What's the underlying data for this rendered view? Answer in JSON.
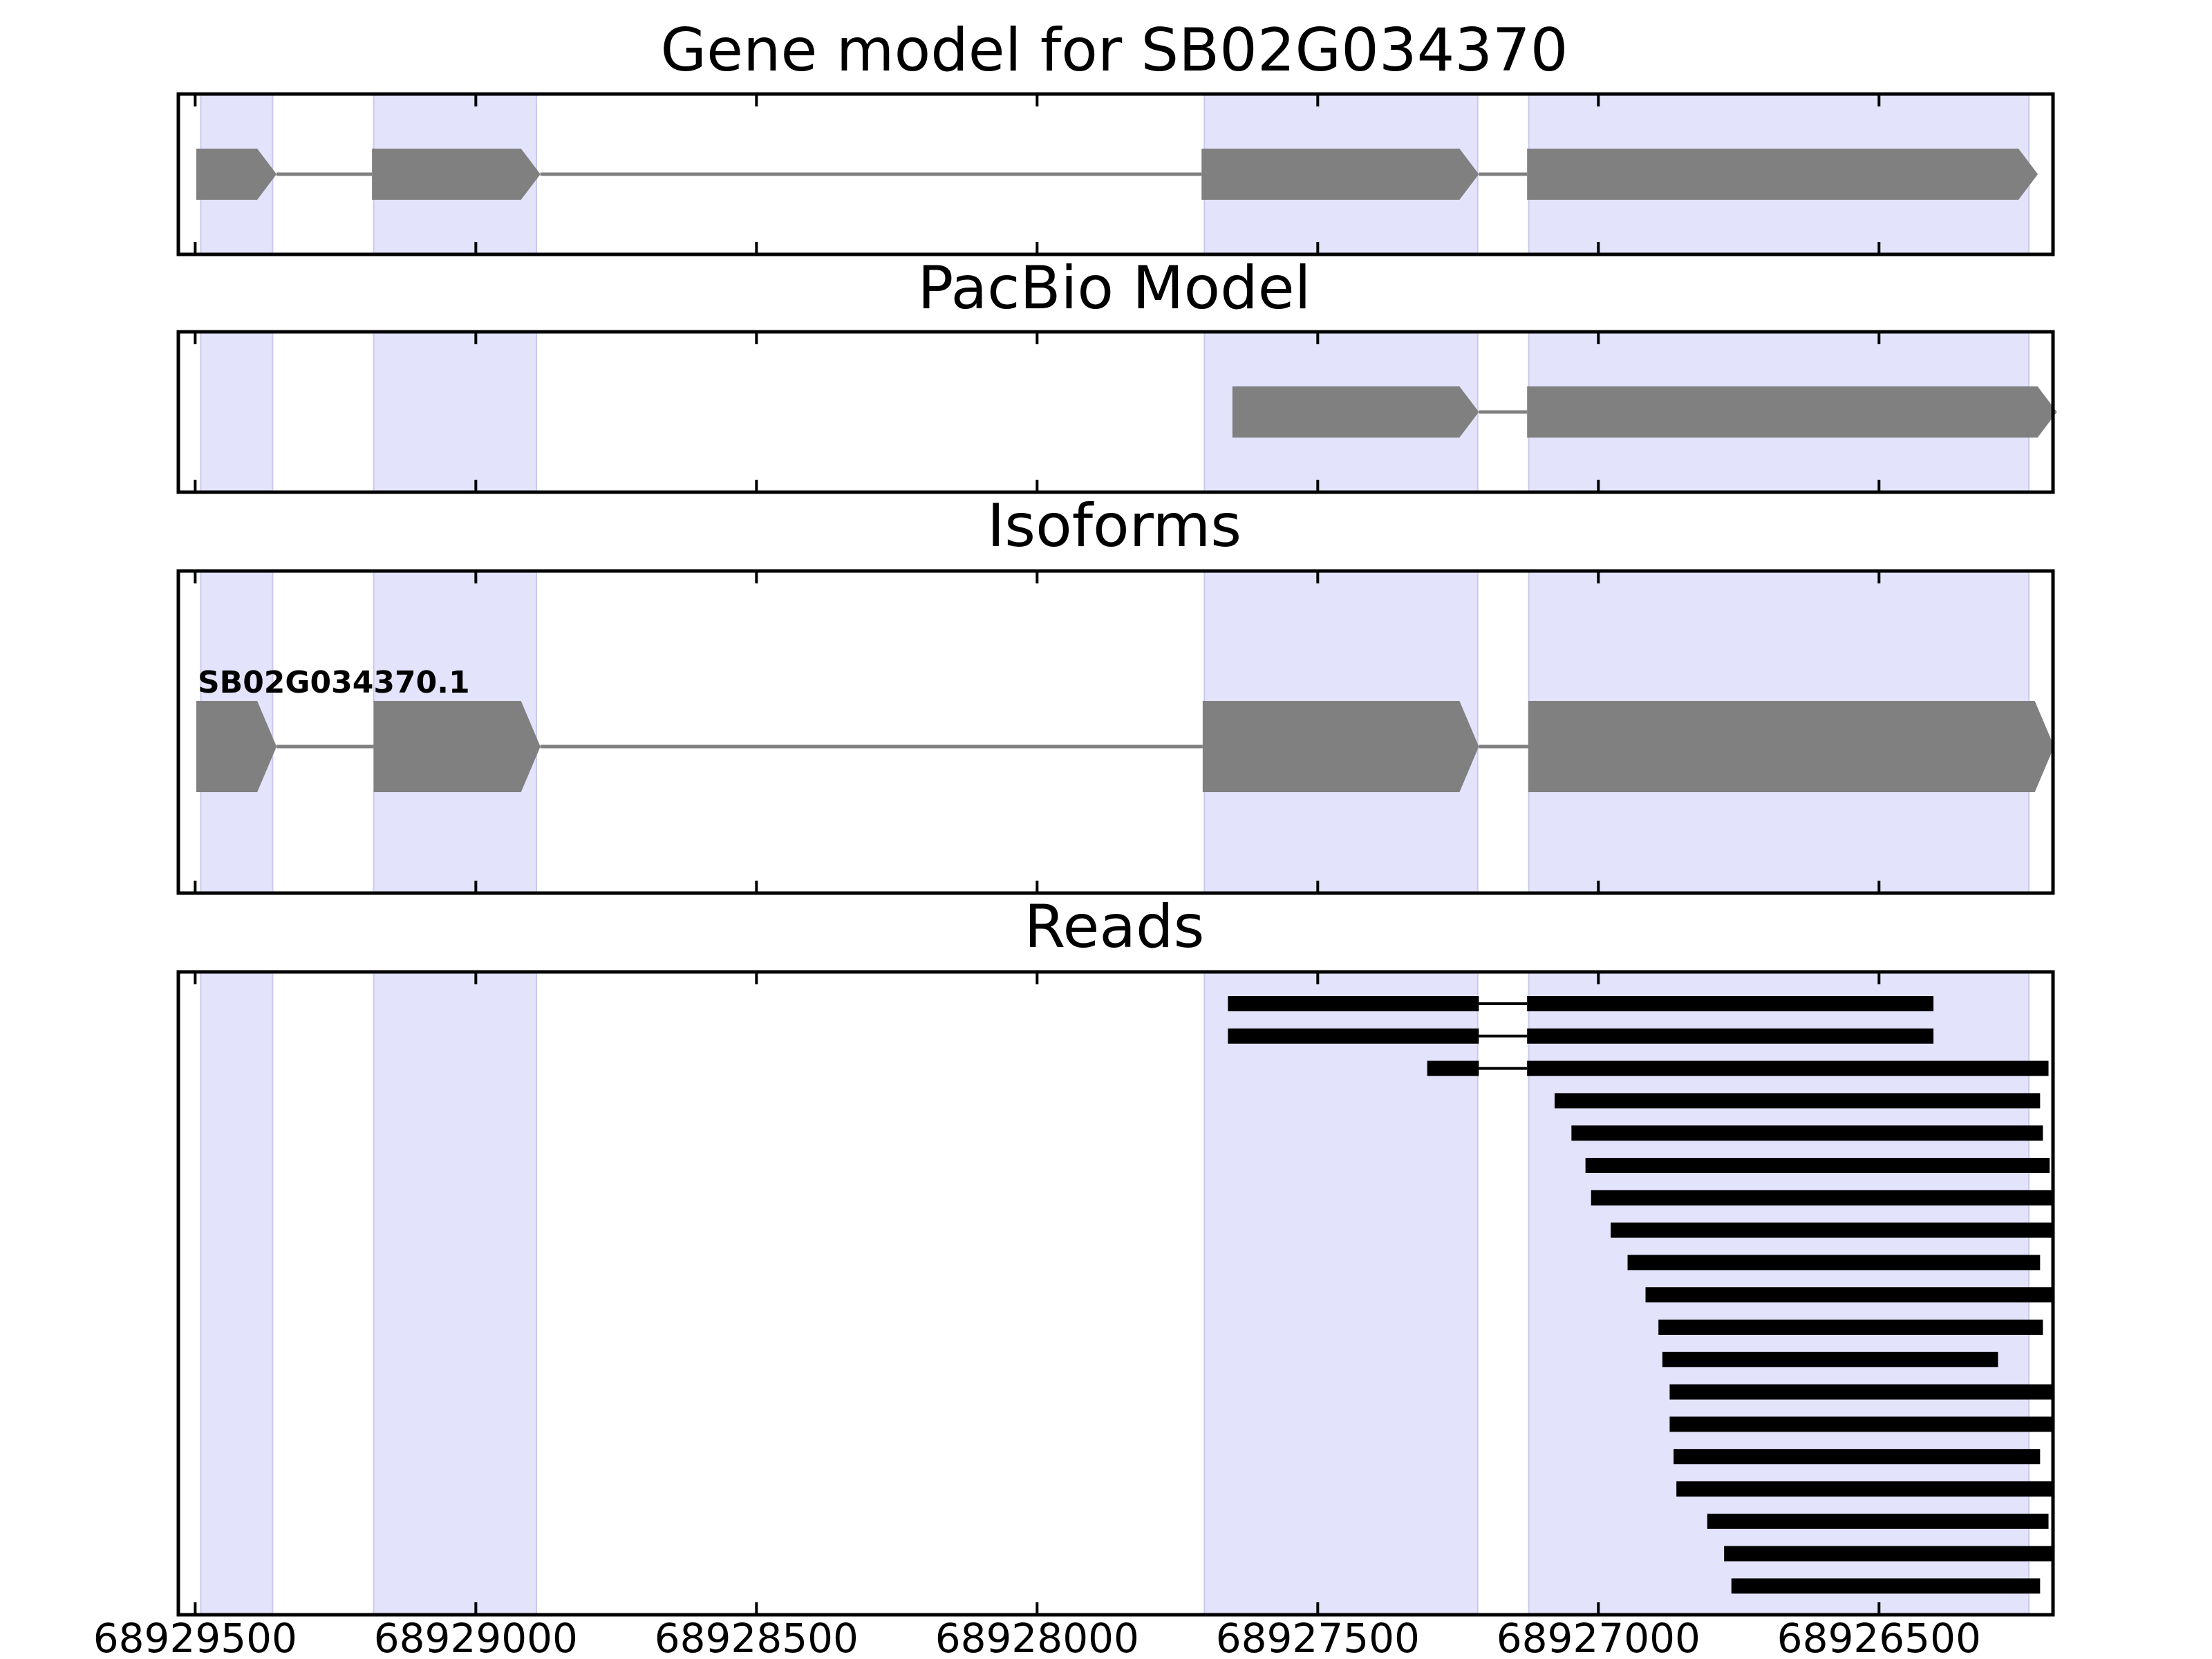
{
  "chart_data": {
    "type": "gene-structure",
    "xlim": [
      68929530,
      68926190
    ],
    "x_ticks": [
      68929500,
      68929000,
      68928500,
      68928000,
      68927500,
      68927000,
      68926500
    ],
    "x_tick_labels": [
      "68929500",
      "68929000",
      "68928500",
      "68928000",
      "68927500",
      "68927000",
      "68926500"
    ],
    "shaded_regions": [
      [
        68929490,
        68929362
      ],
      [
        68929182,
        68928892
      ],
      [
        68927702,
        68927215
      ],
      [
        68927124,
        68926233
      ]
    ],
    "colors": {
      "shade": "#e3e3fc",
      "feature": "#808080",
      "read": "#000000"
    },
    "panels": [
      {
        "name": "gene-model",
        "title": "Gene model for SB02G034370",
        "features": [
          {
            "label": "",
            "exons": [
              [
                68929498,
                68929355
              ],
              [
                68929185,
                68928885
              ],
              [
                68927707,
                68927213
              ],
              [
                68927127,
                68926217
              ]
            ]
          }
        ]
      },
      {
        "name": "pacbio-model",
        "title": "PacBio Model",
        "features": [
          {
            "label": "",
            "exons": [
              [
                68927652,
                68927213
              ],
              [
                68927127,
                68926183
              ]
            ]
          }
        ]
      },
      {
        "name": "isoforms",
        "title": "Isoforms",
        "features": [
          {
            "label": "SB02G034370.1",
            "exons": [
              [
                68929498,
                68929355
              ],
              [
                68929182,
                68928885
              ],
              [
                68927705,
                68927213
              ],
              [
                68927125,
                68926188
              ]
            ]
          }
        ]
      },
      {
        "name": "reads",
        "title": "Reads",
        "reads": [
          [
            [
              68927660,
              68927213
            ],
            [
              68927127,
              68926403
            ]
          ],
          [
            [
              68927660,
              68927213
            ],
            [
              68927127,
              68926403
            ]
          ],
          [
            [
              68927305,
              68927213
            ],
            [
              68927127,
              68926198
            ]
          ],
          [
            [
              68927078,
              68926213
            ]
          ],
          [
            [
              68927048,
              68926208
            ]
          ],
          [
            [
              68927023,
              68926196
            ]
          ],
          [
            [
              68927013,
              68926190
            ]
          ],
          [
            [
              68926978,
              68926190
            ]
          ],
          [
            [
              68926948,
              68926213
            ]
          ],
          [
            [
              68926916,
              68926190
            ]
          ],
          [
            [
              68926893,
              68926208
            ]
          ],
          [
            [
              68926886,
              68926288
            ]
          ],
          [
            [
              68926873,
              68926190
            ]
          ],
          [
            [
              68926873,
              68926190
            ]
          ],
          [
            [
              68926866,
              68926213
            ]
          ],
          [
            [
              68926861,
              68926190
            ]
          ],
          [
            [
              68926806,
              68926198
            ]
          ],
          [
            [
              68926776,
              68926190
            ]
          ],
          [
            [
              68926763,
              68926213
            ]
          ]
        ]
      }
    ]
  }
}
